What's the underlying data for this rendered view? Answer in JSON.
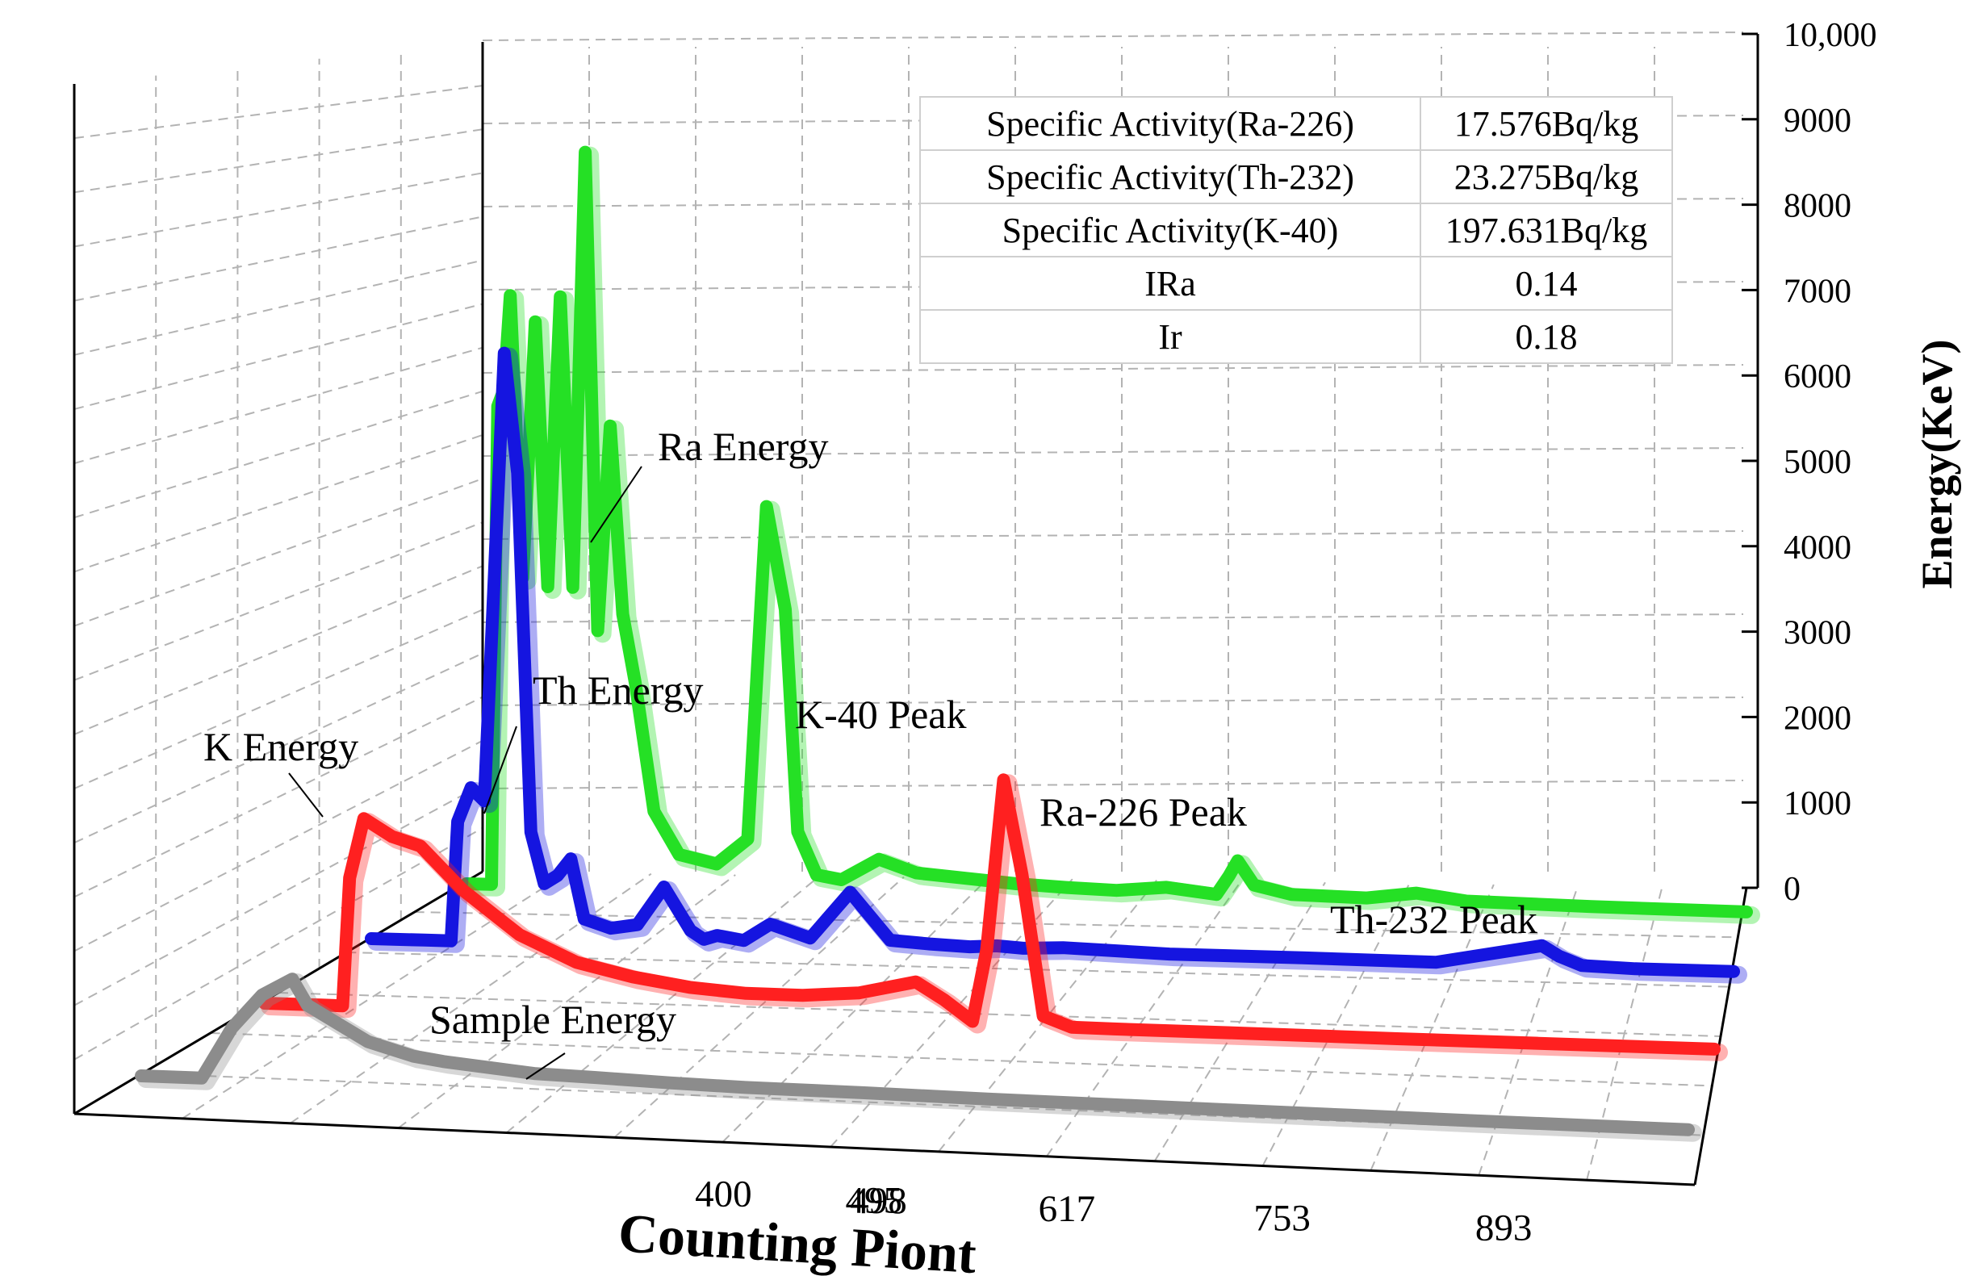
{
  "chart_data": {
    "type": "line",
    "style": "3d-waterfall",
    "title": "",
    "xlabel": "Counting Piont",
    "ylabel": "Energy(KeV)",
    "x_tick_labels": [
      "400",
      "495",
      "498",
      "617",
      "753",
      "893"
    ],
    "y_tick_labels": [
      "0",
      "1000",
      "2000",
      "3000",
      "4000",
      "5000",
      "6000",
      "7000",
      "8000",
      "9000",
      "10,000"
    ],
    "ylim": [
      0,
      10000
    ],
    "xlim": [
      0,
      1024
    ],
    "series": [
      {
        "name": "Sample Energy",
        "color": "#8c8c8c",
        "x": [
          0,
          40,
          60,
          80,
          100,
          110,
          130,
          150,
          160,
          180,
          200,
          230,
          260,
          300,
          350,
          400,
          480,
          560,
          640,
          720,
          800,
          880,
          960,
          1024
        ],
        "values": [
          0,
          0,
          600,
          1000,
          1200,
          900,
          700,
          500,
          450,
          350,
          300,
          250,
          200,
          180,
          150,
          130,
          120,
          100,
          90,
          80,
          70,
          60,
          55,
          50
        ]
      },
      {
        "name": "K Energy",
        "color": "#ff2020",
        "x": [
          0,
          40,
          55,
          60,
          70,
          90,
          110,
          140,
          180,
          220,
          260,
          300,
          340,
          380,
          420,
          460,
          480,
          500,
          510,
          522,
          535,
          550,
          570,
          600,
          700,
          800,
          900,
          1024
        ],
        "values": [
          0,
          0,
          0,
          1500,
          2200,
          2000,
          1900,
          1400,
          900,
          600,
          450,
          350,
          300,
          300,
          350,
          500,
          300,
          60,
          900,
          2900,
          1800,
          150,
          30,
          25,
          25,
          20,
          20,
          20
        ]
      },
      {
        "name": "Th Energy",
        "color": "#1515e0",
        "x": [
          0,
          40,
          60,
          65,
          75,
          85,
          100,
          110,
          120,
          130,
          140,
          150,
          160,
          180,
          200,
          220,
          240,
          250,
          260,
          280,
          300,
          330,
          360,
          390,
          420,
          450,
          470,
          490,
          520,
          600,
          700,
          800,
          880,
          893,
          910,
          950,
          1024
        ],
        "values": [
          0,
          0,
          0,
          1400,
          1800,
          1650,
          6900,
          5500,
          1300,
          700,
          800,
          1000,
          300,
          200,
          250,
          700,
          200,
          100,
          150,
          100,
          300,
          150,
          700,
          150,
          120,
          100,
          120,
          100,
          120,
          80,
          80,
          70,
          300,
          180,
          80,
          60,
          60
        ]
      },
      {
        "name": "Ra Energy",
        "color": "#25e025",
        "x": [
          0,
          20,
          25,
          30,
          35,
          45,
          55,
          65,
          75,
          85,
          95,
          105,
          115,
          125,
          135,
          150,
          170,
          200,
          225,
          240,
          255,
          265,
          280,
          300,
          330,
          360,
          400,
          440,
          480,
          520,
          560,
          600,
          610,
          617,
          630,
          660,
          720,
          760,
          800,
          900,
          1024
        ],
        "values": [
          0,
          0,
          5600,
          5800,
          6900,
          3600,
          6600,
          3500,
          6900,
          3500,
          8600,
          3000,
          5400,
          3200,
          2400,
          900,
          400,
          300,
          600,
          4500,
          3300,
          700,
          200,
          150,
          400,
          250,
          200,
          150,
          120,
          100,
          150,
          80,
          300,
          480,
          200,
          100,
          80,
          150,
          70,
          40,
          20
        ]
      }
    ],
    "annotations": [
      "Ra Energy",
      "Th Energy",
      "K Energy",
      "Sample Energy",
      "K-40 Peak",
      "Ra-226 Peak",
      "Th-232 Peak"
    ],
    "table": [
      {
        "label": "Specific Activity(Ra-226)",
        "value": "17.576Bq/kg"
      },
      {
        "label": "Specific Activity(Th-232)",
        "value": "23.275Bq/kg"
      },
      {
        "label": "Specific Activity(K-40)",
        "value": "197.631Bq/kg"
      },
      {
        "label": "IRa",
        "value": "0.14"
      },
      {
        "label": "Ir",
        "value": "0.18"
      }
    ]
  }
}
